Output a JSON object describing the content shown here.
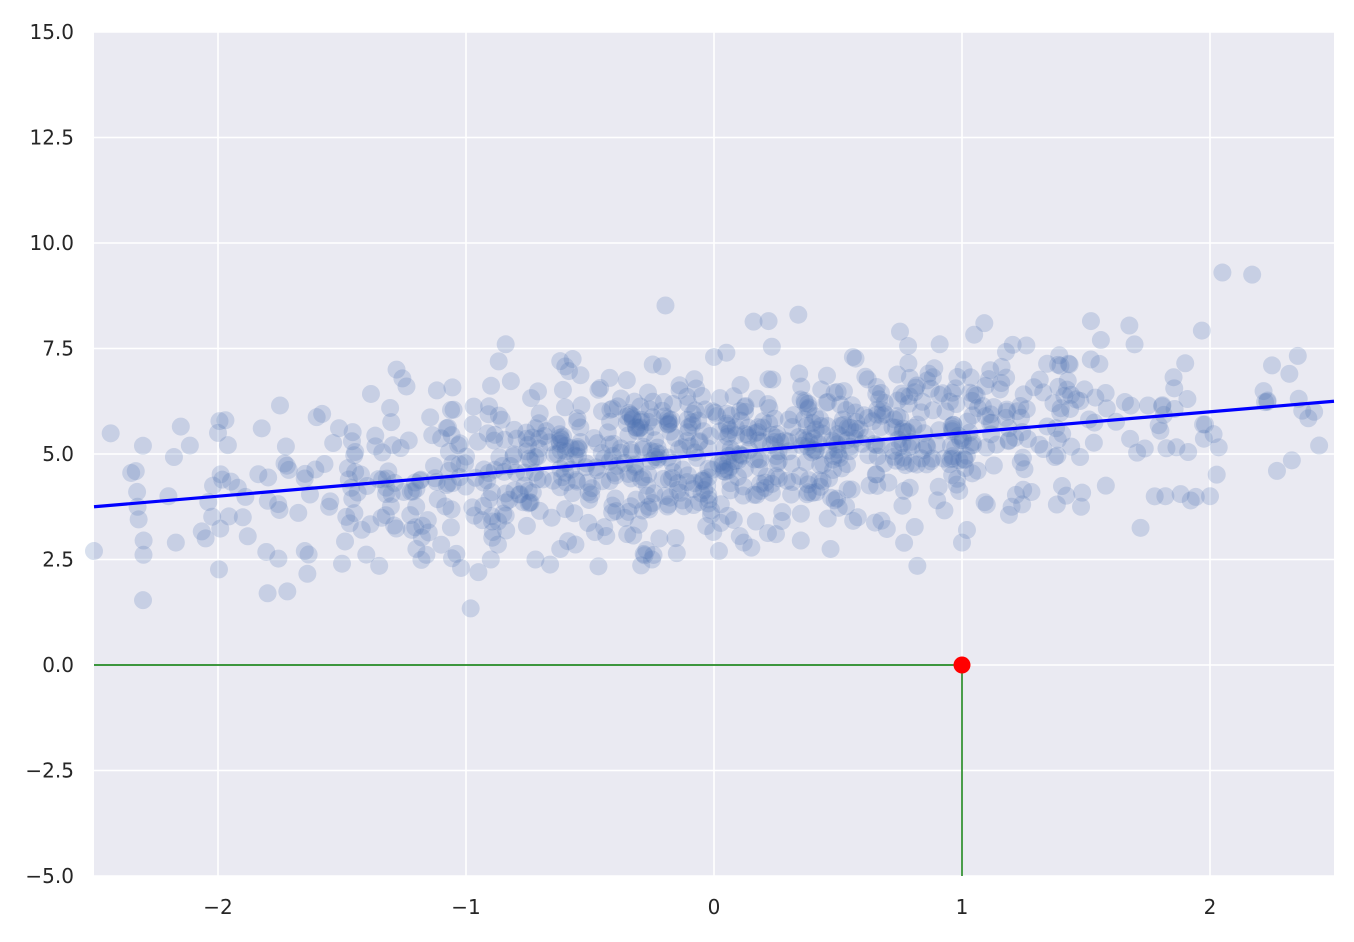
{
  "chart_data": {
    "type": "scatter",
    "title": "",
    "xlabel": "",
    "ylabel": "",
    "xlim": [
      -2.5,
      2.5
    ],
    "ylim": [
      -5,
      15
    ],
    "grid": true,
    "x_ticks": [
      {
        "value": -2,
        "label": "−2"
      },
      {
        "value": -1,
        "label": "−1"
      },
      {
        "value": 0,
        "label": "0"
      },
      {
        "value": 1,
        "label": "1"
      },
      {
        "value": 2,
        "label": "2"
      }
    ],
    "y_ticks": [
      {
        "value": -5,
        "label": "−5.0"
      },
      {
        "value": -2.5,
        "label": "−2.5"
      },
      {
        "value": 0,
        "label": "0.0"
      },
      {
        "value": 2.5,
        "label": "2.5"
      },
      {
        "value": 5,
        "label": "5.0"
      },
      {
        "value": 7.5,
        "label": "7.5"
      },
      {
        "value": 10,
        "label": "10.0"
      },
      {
        "value": 12.5,
        "label": "12.5"
      },
      {
        "value": 15,
        "label": "15.0"
      }
    ],
    "scatter_color": "#4c72b0",
    "point_count": 1000,
    "points": [
      [
        -2.5,
        2.7
      ],
      [
        -2.32,
        3.45
      ],
      [
        -2.3,
        2.95
      ],
      [
        -2.17,
        2.9
      ],
      [
        -2.15,
        5.65
      ],
      [
        -2.0,
        5.5
      ],
      [
        -1.97,
        5.8
      ],
      [
        -1.8,
        1.7
      ],
      [
        -1.75,
        6.15
      ],
      [
        -1.58,
        5.95
      ],
      [
        -1.5,
        2.4
      ],
      [
        -1.35,
        2.35
      ],
      [
        -1.28,
        7.0
      ],
      [
        -1.24,
        6.6
      ],
      [
        -1.05,
        6.05
      ],
      [
        -1.02,
        2.3
      ],
      [
        -0.95,
        2.2
      ],
      [
        -0.84,
        7.6
      ],
      [
        -0.62,
        7.2
      ],
      [
        -0.57,
        7.25
      ],
      [
        -0.28,
        2.6
      ],
      [
        -0.25,
        2.5
      ],
      [
        0.0,
        7.3
      ],
      [
        0.05,
        7.4
      ],
      [
        0.22,
        8.15
      ],
      [
        0.34,
        8.3
      ],
      [
        0.56,
        7.3
      ],
      [
        0.75,
        7.9
      ],
      [
        0.82,
        2.35
      ],
      [
        0.91,
        7.6
      ],
      [
        1.09,
        8.1
      ],
      [
        1.52,
        8.15
      ],
      [
        1.56,
        7.7
      ],
      [
        1.72,
        3.25
      ],
      [
        1.9,
        7.15
      ],
      [
        2.05,
        9.3
      ],
      [
        2.17,
        9.25
      ],
      [
        2.25,
        7.1
      ],
      [
        2.32,
        6.9
      ],
      [
        2.42,
        6.0
      ],
      [
        2.44,
        5.2
      ],
      [
        1.0,
        2.9
      ],
      [
        1.02,
        3.2
      ],
      [
        2.27,
        4.6
      ],
      [
        2.33,
        4.85
      ],
      [
        2.0,
        4.0
      ],
      [
        1.98,
        5.7
      ],
      [
        1.82,
        4.0
      ],
      [
        -2.35,
        4.55
      ],
      [
        -2.2,
        4.0
      ],
      [
        -2.05,
        3.0
      ],
      [
        -2.02,
        4.25
      ],
      [
        -1.92,
        4.2
      ],
      [
        -1.9,
        3.5
      ],
      [
        -1.88,
        3.05
      ],
      [
        -1.65,
        2.7
      ],
      [
        -1.45,
        3.6
      ],
      [
        -1.3,
        4.05
      ],
      [
        -1.2,
        2.75
      ],
      [
        -1.1,
        2.85
      ],
      [
        -0.9,
        2.5
      ],
      [
        -0.72,
        2.5
      ],
      [
        -0.62,
        2.75
      ],
      [
        -0.48,
        3.15
      ],
      [
        -0.35,
        3.1
      ],
      [
        -0.15,
        2.65
      ],
      [
        0.02,
        2.7
      ],
      [
        0.12,
        2.9
      ],
      [
        0.25,
        3.1
      ],
      [
        0.35,
        2.95
      ],
      [
        0.47,
        2.75
      ],
      [
        0.58,
        3.5
      ],
      [
        0.9,
        3.9
      ],
      [
        1.1,
        3.8
      ],
      [
        1.2,
        3.75
      ],
      [
        1.28,
        4.1
      ],
      [
        1.48,
        3.75
      ],
      [
        1.58,
        4.25
      ],
      [
        1.75,
        6.15
      ],
      [
        1.8,
        5.55
      ]
    ],
    "trend_line": {
      "color": "#0000ff",
      "slope": 0.5,
      "intercept": 5.0,
      "x_start": -2.5,
      "x_end": 2.5
    },
    "highlight_point": {
      "x": 1,
      "y": 0,
      "color": "#ff0000"
    },
    "guide_lines": {
      "color": "#007700",
      "horizontal_y": 0,
      "vertical_x": 1
    }
  }
}
